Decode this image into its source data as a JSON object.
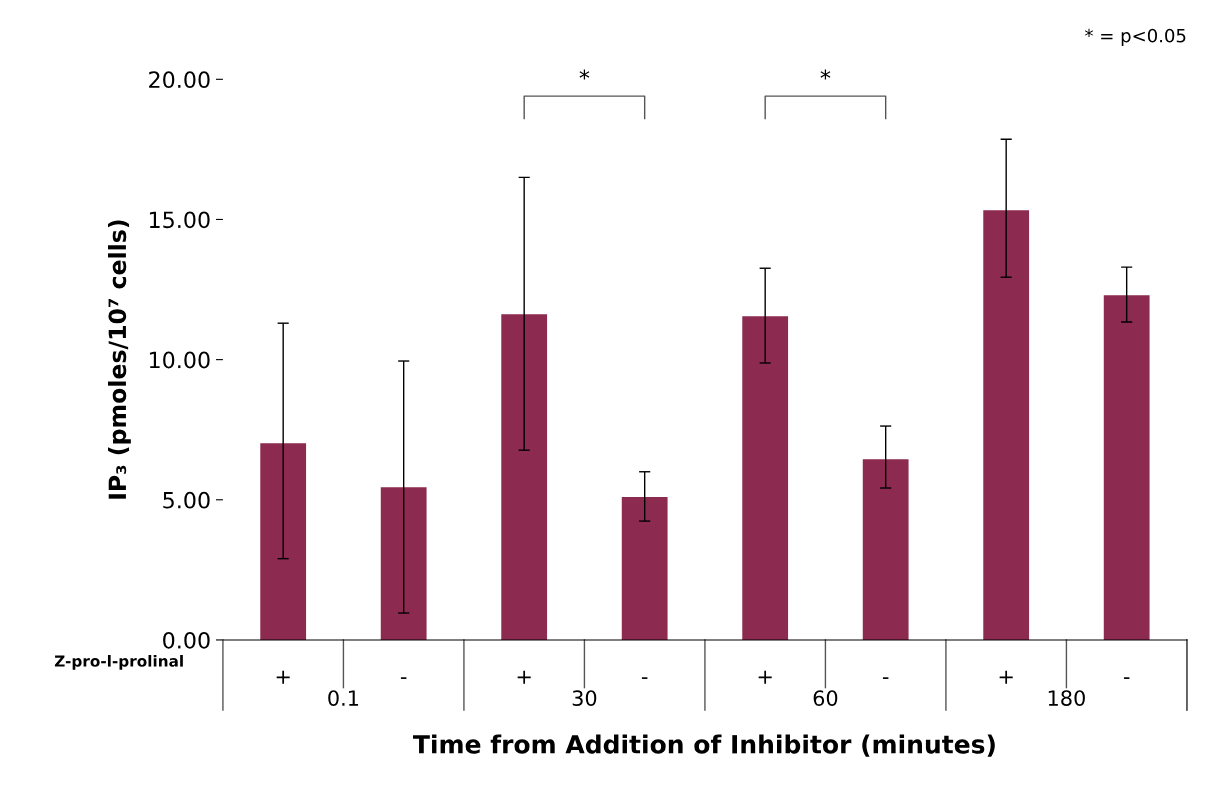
{
  "chart_data": {
    "type": "bar",
    "xlabel": "Time from Addition of Inhibitor (minutes)",
    "ylabel": "IP₃ (pmoles/10⁷ cells)",
    "categories": [
      "+",
      "-",
      "+",
      "-",
      "+",
      "-",
      "+",
      "-"
    ],
    "values": [
      7.02,
      5.45,
      11.62,
      5.1,
      11.55,
      6.45,
      15.33,
      12.3
    ],
    "errors": [
      [
        2.9,
        11.3
      ],
      [
        0.96,
        9.95
      ],
      [
        6.77,
        16.5
      ],
      [
        4.24,
        6.0
      ],
      [
        9.88,
        13.26
      ],
      [
        5.42,
        7.63
      ],
      [
        12.94,
        17.86
      ],
      [
        11.34,
        13.3
      ]
    ],
    "color": "#8c2a4f",
    "ylim": [
      0,
      20
    ],
    "yticks": [
      {
        "value": 0,
        "label": "0.00"
      },
      {
        "value": 5,
        "label": "5.00"
      },
      {
        "value": 10,
        "label": "10.00"
      },
      {
        "value": 15,
        "label": "15.00"
      },
      {
        "value": 20,
        "label": "20.00"
      }
    ],
    "annotations": [
      "Z-pro-l-prolinal",
      "0.1",
      "30",
      "60",
      "180",
      "*",
      "*",
      "* = p<0.05"
    ],
    "grid": false
  }
}
